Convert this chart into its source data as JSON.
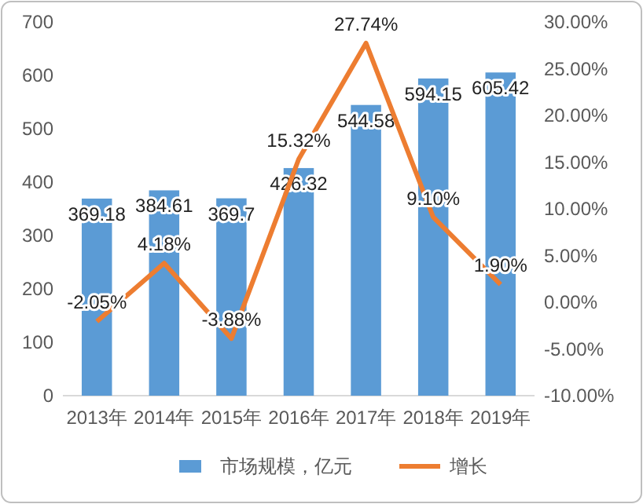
{
  "chart_data": {
    "type": "bar",
    "categories": [
      "2013年",
      "2014年",
      "2015年",
      "2016年",
      "2017年",
      "2018年",
      "2019年"
    ],
    "series": [
      {
        "name": "市场规模，亿元",
        "color": "#5b9bd5",
        "values": [
          369.18,
          384.61,
          369.7,
          426.32,
          544.58,
          594.15,
          605.42
        ]
      },
      {
        "name": "增长",
        "type": "line",
        "axis": "y2",
        "color": "#ed7d31",
        "values": [
          -2.05,
          4.18,
          -3.88,
          15.32,
          27.74,
          9.1,
          1.9
        ],
        "value_labels": [
          "-2.05%",
          "4.18%",
          "-3.88%",
          "15.32%",
          "27.74%",
          "9.10%",
          "1.90%"
        ]
      }
    ],
    "data_labels": true,
    "ylim": [
      0,
      700
    ],
    "yticks": [
      0,
      100,
      200,
      300,
      400,
      500,
      600,
      700
    ],
    "y2lim": [
      -10,
      30
    ],
    "y2ticks": [
      {
        "value": -10,
        "label": "-10.00%"
      },
      {
        "value": -5,
        "label": "-5.00%"
      },
      {
        "value": 0,
        "label": "0.00%"
      },
      {
        "value": 5,
        "label": "5.00%"
      },
      {
        "value": 10,
        "label": "10.00%"
      },
      {
        "value": 15,
        "label": "15.00%"
      },
      {
        "value": 20,
        "label": "20.00%"
      },
      {
        "value": 25,
        "label": "25.00%"
      },
      {
        "value": 30,
        "label": "30.00%"
      }
    ],
    "grid": false,
    "legend": "bottom",
    "marker": "none",
    "line_style": "solid"
  }
}
